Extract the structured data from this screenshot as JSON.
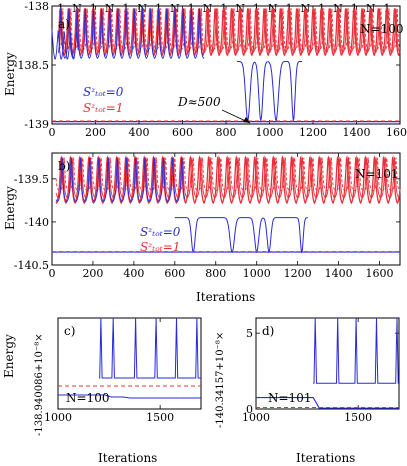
{
  "colors": {
    "blue": "#2a2ad8",
    "red": "#e8303a",
    "axis": "#000000"
  },
  "chart_data": [
    {
      "type": "line",
      "panel": "a)",
      "title": "N=100",
      "xlabel": "",
      "ylabel": "Energy",
      "xlim": [
        0,
        1600
      ],
      "ylim": [
        -139,
        -138
      ],
      "xticks": [
        "0",
        "200",
        "400",
        "600",
        "800",
        "1000",
        "1200",
        "1400",
        "1600"
      ],
      "yticks": [
        "-139",
        "-138.5",
        "-138"
      ],
      "top_labels": [
        "1",
        "N",
        "1",
        "N",
        "1",
        "N",
        "1",
        "N",
        "1",
        "N",
        "1",
        "N",
        "1",
        "N",
        "1",
        "N",
        "1",
        "N",
        "1",
        "N",
        "1"
      ],
      "legend": [
        "Sᶻₜₒₜ=0",
        "Sᶻₜₒₜ=1"
      ],
      "annotation": "D≈500",
      "series": [
        {
          "name": "Sᶻₜₒₜ=0",
          "color": "#2a2ad8",
          "baseline": -138.47,
          "ground": -138.98,
          "spikes_to": -138.02,
          "period": 40
        },
        {
          "name": "Sᶻₜₒₜ=1",
          "color": "#e8303a",
          "baseline": -138.45,
          "ground": -138.98,
          "spikes_to": -138.02,
          "period": 40
        }
      ]
    },
    {
      "type": "line",
      "panel": "b)",
      "title": "N=101",
      "xlabel": "Iterations",
      "ylabel": "Energy",
      "xlim": [
        0,
        1700
      ],
      "ylim": [
        -140.5,
        -139.2
      ],
      "xticks": [
        "0",
        "200",
        "400",
        "600",
        "800",
        "1000",
        "1200",
        "1400",
        "1600"
      ],
      "yticks": [
        "-140.5",
        "-140",
        "-139.5"
      ],
      "legend": [
        "Sᶻₜₒₜ=0",
        "Sᶻₜₒₜ=1"
      ],
      "series": [
        {
          "name": "Sᶻₜₒₜ=0",
          "color": "#2a2ad8",
          "ground": -140.35
        },
        {
          "name": "Sᶻₜₒₜ=1",
          "color": "#e8303a",
          "ground": -140.35
        }
      ]
    },
    {
      "type": "line",
      "panel": "c)",
      "title": "N=100",
      "xlabel": "Iterations",
      "ylabel": "Energy",
      "yoffset_label": "-138.940086+10⁻⁸×",
      "xlim": [
        1000,
        1700
      ],
      "xticks": [
        "1000",
        "1500"
      ],
      "yticks": [],
      "series": [
        {
          "name": "Sᶻₜₒₜ=0",
          "color": "#2a2ad8"
        },
        {
          "name": "Sᶻₜₒₜ=1",
          "color": "#e8303a"
        }
      ]
    },
    {
      "type": "line",
      "panel": "d)",
      "title": "N=101",
      "xlabel": "Iterations",
      "ylabel": "",
      "yoffset_label": "-140.34157+10⁻⁸×",
      "xlim": [
        1000,
        1700
      ],
      "ylim": [
        0,
        6
      ],
      "xticks": [
        "1000",
        "1500"
      ],
      "yticks": [
        "0",
        "5"
      ],
      "series": [
        {
          "name": "Sᶻₜₒₜ=0",
          "color": "#2a2ad8"
        },
        {
          "name": "Sᶻₜₒₜ=1",
          "color": "#e8303a"
        }
      ]
    }
  ]
}
